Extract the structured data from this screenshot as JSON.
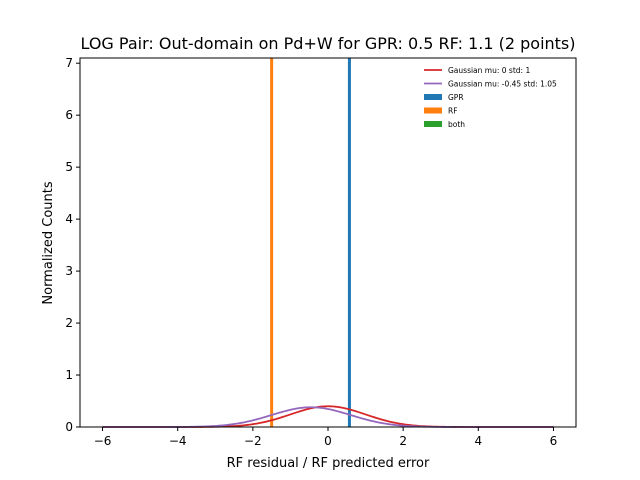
{
  "chart_data": {
    "type": "histogram",
    "title": "LOG Pair: Out-domain on Pd+W for GPR: 0.5 RF: 1.1 (2 points)",
    "xlabel": "RF residual / RF predicted error",
    "ylabel": "Normalized Counts",
    "xlim": [
      -6.6,
      6.6
    ],
    "ylim": [
      0,
      7.1
    ],
    "x_ticks": [
      -6,
      -4,
      -2,
      0,
      2,
      4,
      6
    ],
    "x_tick_labels": [
      "−6",
      "−4",
      "−2",
      "0",
      "2",
      "4",
      "6"
    ],
    "y_ticks": [
      0,
      1,
      2,
      3,
      4,
      5,
      6,
      7
    ],
    "y_tick_labels": [
      "0",
      "1",
      "2",
      "3",
      "4",
      "5",
      "6",
      "7"
    ],
    "grid": false,
    "legend_position": "top-right",
    "histogram_bars": [
      {
        "name": "GPR",
        "x": 0.57,
        "value": 7.1,
        "color": "#1f77b4"
      },
      {
        "name": "RF",
        "x": -1.5,
        "value": 7.1,
        "color": "#ff7f0e"
      }
    ],
    "curves": [
      {
        "name": "Gaussian mu: 0 std: 1",
        "mu": 0,
        "sigma": 1,
        "color": "#d62728"
      },
      {
        "name": "Gaussian mu: -0.45 std: 1.05",
        "mu": -0.45,
        "sigma": 1.05,
        "color": "#9467bd"
      }
    ],
    "legend": [
      {
        "label": "Gaussian mu: 0 std: 1",
        "kind": "line",
        "color": "#d62728"
      },
      {
        "label": "Gaussian mu: -0.45 std: 1.05",
        "kind": "line",
        "color": "#9467bd"
      },
      {
        "label": "GPR",
        "kind": "patch",
        "color": "#1f77b4"
      },
      {
        "label": "RF",
        "kind": "patch",
        "color": "#ff7f0e"
      },
      {
        "label": "both",
        "kind": "patch",
        "color": "#2ca02c"
      }
    ]
  }
}
